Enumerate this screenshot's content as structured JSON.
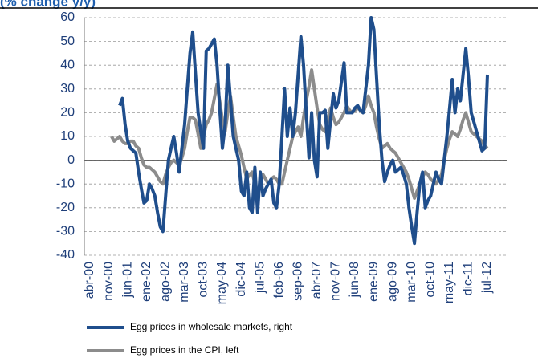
{
  "chart_data": {
    "type": "line",
    "title": "(% change y/y)",
    "categories": [
      "abr-00",
      null,
      null,
      null,
      null,
      null,
      null,
      "nov-00",
      null,
      null,
      null,
      null,
      null,
      null,
      "jun-01",
      null,
      null,
      null,
      null,
      null,
      null,
      "ene-02",
      null,
      null,
      null,
      null,
      null,
      null,
      "ago-02",
      null,
      null,
      null,
      null,
      null,
      null,
      "mar-03",
      null,
      null,
      null,
      null,
      null,
      null,
      "oct-03",
      null,
      null,
      null,
      null,
      null,
      null,
      "may-04",
      null,
      null,
      null,
      null,
      null,
      null,
      "dic-04",
      null,
      null,
      null,
      null,
      null,
      null,
      "jul-05",
      null,
      null,
      null,
      null,
      null,
      null,
      "feb-06",
      null,
      null,
      null,
      null,
      null,
      null,
      "sep-06",
      null,
      null,
      null,
      null,
      null,
      null,
      "abr-07",
      null,
      null,
      null,
      null,
      null,
      null,
      "nov-07",
      null,
      null,
      null,
      null,
      null,
      null,
      "jun-08",
      null,
      null,
      null,
      null,
      null,
      null,
      "ene-09",
      null,
      null,
      null,
      null,
      null,
      null,
      "ago-09",
      null,
      null,
      null,
      null,
      null,
      null,
      "mar-10",
      null,
      null,
      null,
      null,
      null,
      null,
      "oct-10",
      null,
      null,
      null,
      null,
      null,
      null,
      "may-11",
      null,
      null,
      null,
      null,
      null,
      null,
      "dic-11",
      null,
      null,
      null,
      null,
      null,
      null,
      "jul-12"
    ],
    "series": [
      {
        "name": "Egg prices in wholesale markets, right",
        "color": "#1f4e8c",
        "values": [
          null,
          null,
          null,
          null,
          null,
          null,
          null,
          null,
          null,
          null,
          null,
          23,
          26,
          15,
          8,
          5,
          4,
          3,
          -5,
          -12,
          -18,
          -17,
          -10,
          -12,
          -15,
          -22,
          -28,
          -30,
          -15,
          0,
          5,
          10,
          3,
          -5,
          5,
          15,
          30,
          45,
          54,
          37,
          20,
          12,
          5,
          46,
          47,
          49,
          51,
          40,
          22,
          5,
          15,
          40,
          25,
          10,
          5,
          0,
          -13,
          -15,
          -5,
          -20,
          -22,
          -3,
          -22,
          -5,
          -15,
          -12,
          -10,
          -8,
          -18,
          -20,
          -10,
          10,
          30,
          10,
          22,
          10,
          20,
          36,
          52,
          40,
          20,
          1,
          20,
          0,
          -7,
          20,
          20,
          21,
          5,
          17,
          28,
          22,
          25,
          33,
          41,
          20,
          20,
          20,
          22,
          23,
          21,
          20,
          30,
          40,
          60,
          55,
          35,
          15,
          0,
          -9,
          -5,
          -2,
          0,
          -5,
          -4,
          -3,
          -6,
          -10,
          -20,
          -28,
          -35,
          -22,
          -10,
          -5,
          -20,
          -17,
          -15,
          -10,
          -5,
          -8,
          -10,
          0,
          10,
          22,
          34,
          20,
          30,
          25,
          36,
          47,
          35,
          20,
          16,
          12,
          8,
          4,
          5,
          36
        ]
      },
      {
        "name": "Egg prices in the CPI, left",
        "color": "#8c8c8c",
        "values": [
          null,
          null,
          null,
          null,
          null,
          null,
          null,
          null,
          10,
          8,
          9,
          10,
          8,
          7,
          7,
          8,
          8,
          6,
          5,
          1,
          -2,
          -3,
          -3,
          -4,
          -5,
          -7,
          -9,
          -10,
          -6,
          -3,
          -1,
          0,
          -1,
          -2,
          1,
          5,
          12,
          18,
          18,
          17,
          11,
          5,
          10,
          15,
          17,
          20,
          26,
          32,
          25,
          17,
          12,
          20,
          27,
          18,
          10,
          6,
          2,
          -3,
          -8,
          -6,
          -5,
          -10,
          -15,
          -10,
          -6,
          -8,
          -10,
          -8,
          -7,
          -8,
          -10,
          -10,
          -5,
          0,
          5,
          10,
          12,
          14,
          10,
          18,
          25,
          31,
          38,
          30,
          22,
          15,
          13,
          12,
          17,
          22,
          18,
          15,
          16,
          18,
          20,
          23,
          21,
          20,
          21,
          22,
          21,
          20,
          23,
          27,
          23,
          20,
          14,
          9,
          5,
          6,
          7,
          5,
          4,
          3,
          1,
          -1,
          -3,
          -5,
          -8,
          -12,
          -16,
          -13,
          -10,
          -7,
          -5,
          -6,
          -8,
          -9,
          -10,
          -8,
          -6,
          0,
          5,
          9,
          12,
          11,
          10,
          13,
          17,
          20,
          16,
          12,
          11,
          10,
          9,
          8,
          6,
          5
        ]
      }
    ],
    "ylim": [
      -40,
      60
    ],
    "yticks": [
      -40,
      -30,
      -20,
      -10,
      0,
      10,
      20,
      30,
      40,
      50,
      60
    ],
    "grid": true
  }
}
